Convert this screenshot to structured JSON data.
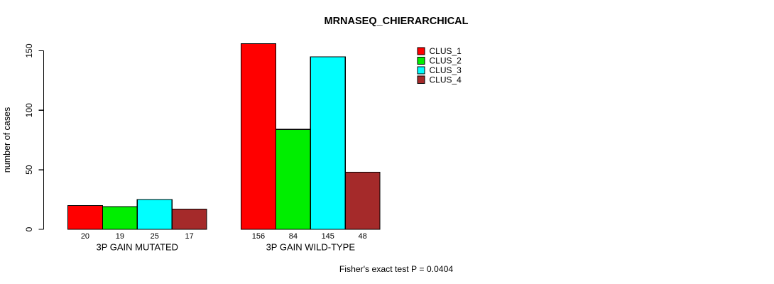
{
  "chart_data": {
    "type": "bar",
    "title": "MRNASEQ_CHIERARCHICAL",
    "ylabel": "number of cases",
    "xlabel": "",
    "ylim": [
      0,
      150
    ],
    "yticks": [
      0,
      50,
      100,
      150
    ],
    "categories": [
      "3P GAIN MUTATED",
      "3P GAIN WILD-TYPE"
    ],
    "series": [
      {
        "name": "CLUS_1",
        "color": "#ff0000",
        "values": [
          20,
          156
        ]
      },
      {
        "name": "CLUS_2",
        "color": "#00ee00",
        "values": [
          19,
          84
        ]
      },
      {
        "name": "CLUS_3",
        "color": "#00ffff",
        "values": [
          25,
          145
        ]
      },
      {
        "name": "CLUS_4",
        "color": "#a52a2a",
        "values": [
          17,
          48
        ]
      }
    ],
    "bar_value_labels": true,
    "legend_position": "top-right",
    "grid": false,
    "annotation": "Fisher's exact test P = 0.0404",
    "axis_color": "#000000",
    "bar_outline_color": "#000000"
  }
}
